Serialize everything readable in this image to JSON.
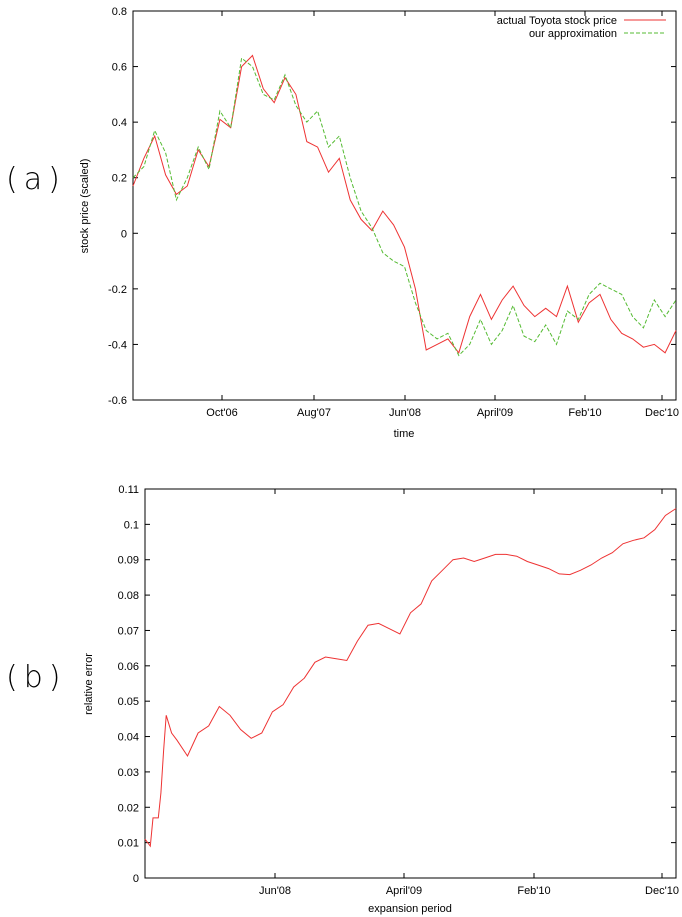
{
  "panel_labels": [
    "(a)",
    "(b)"
  ],
  "chart_data": [
    {
      "type": "line",
      "xlabel": "time",
      "ylabel": "stock price (scaled)",
      "x_ticks": [
        "Oct'06",
        "Aug'07",
        "Jun'08",
        "April'09",
        "Feb'10",
        "Dec'10"
      ],
      "ylim": [
        -0.6,
        0.8
      ],
      "y_ticks": [
        "-0.6",
        "-0.4",
        "-0.2",
        "0",
        "0.2",
        "0.4",
        "0.6",
        "0.8"
      ],
      "legend_position": "top-right",
      "colors": {
        "actual": "#ee3333",
        "approx": "#55bb33"
      },
      "series": [
        {
          "name": "actual Toyota stock price",
          "style": "solid",
          "x": [
            0,
            0.02,
            0.04,
            0.06,
            0.08,
            0.1,
            0.12,
            0.14,
            0.16,
            0.18,
            0.2,
            0.22,
            0.24,
            0.26,
            0.28,
            0.3,
            0.32,
            0.34,
            0.36,
            0.38,
            0.4,
            0.42,
            0.44,
            0.46,
            0.48,
            0.5,
            0.52,
            0.54,
            0.56,
            0.58,
            0.6,
            0.62,
            0.64,
            0.66,
            0.68,
            0.7,
            0.72,
            0.74,
            0.76,
            0.78,
            0.8,
            0.82,
            0.84,
            0.86,
            0.88,
            0.9,
            0.92,
            0.94,
            0.96,
            0.98,
            1.0
          ],
          "values": [
            0.17,
            0.27,
            0.35,
            0.21,
            0.14,
            0.17,
            0.3,
            0.24,
            0.41,
            0.38,
            0.6,
            0.64,
            0.52,
            0.47,
            0.56,
            0.5,
            0.33,
            0.31,
            0.22,
            0.27,
            0.12,
            0.05,
            0.01,
            0.08,
            0.03,
            -0.05,
            -0.2,
            -0.42,
            -0.4,
            -0.38,
            -0.43,
            -0.3,
            -0.22,
            -0.31,
            -0.24,
            -0.19,
            -0.26,
            -0.3,
            -0.27,
            -0.3,
            -0.19,
            -0.32,
            -0.25,
            -0.22,
            -0.31,
            -0.36,
            -0.38,
            -0.41,
            -0.4,
            -0.43,
            -0.35
          ]
        },
        {
          "name": "our approximation",
          "style": "dashed",
          "x": [
            0,
            0.02,
            0.04,
            0.06,
            0.08,
            0.1,
            0.12,
            0.14,
            0.16,
            0.18,
            0.2,
            0.22,
            0.24,
            0.26,
            0.28,
            0.3,
            0.32,
            0.34,
            0.36,
            0.38,
            0.4,
            0.42,
            0.44,
            0.46,
            0.48,
            0.5,
            0.52,
            0.54,
            0.56,
            0.58,
            0.6,
            0.62,
            0.64,
            0.66,
            0.68,
            0.7,
            0.72,
            0.74,
            0.76,
            0.78,
            0.8,
            0.82,
            0.84,
            0.86,
            0.88,
            0.9,
            0.92,
            0.94,
            0.96,
            0.98,
            1.0
          ],
          "values": [
            0.2,
            0.24,
            0.37,
            0.29,
            0.12,
            0.2,
            0.31,
            0.23,
            0.44,
            0.38,
            0.63,
            0.6,
            0.5,
            0.48,
            0.57,
            0.46,
            0.4,
            0.44,
            0.31,
            0.35,
            0.2,
            0.08,
            0.02,
            -0.07,
            -0.1,
            -0.12,
            -0.25,
            -0.35,
            -0.38,
            -0.36,
            -0.44,
            -0.4,
            -0.31,
            -0.4,
            -0.35,
            -0.26,
            -0.37,
            -0.39,
            -0.33,
            -0.4,
            -0.28,
            -0.31,
            -0.22,
            -0.18,
            -0.2,
            -0.22,
            -0.3,
            -0.34,
            -0.24,
            -0.3,
            -0.24
          ]
        }
      ]
    },
    {
      "type": "line",
      "xlabel": "expansion period",
      "ylabel": "relative error",
      "x_ticks": [
        "Jun'08",
        "April'09",
        "Feb'10",
        "Dec'10"
      ],
      "ylim": [
        0,
        0.11
      ],
      "y_ticks": [
        "0",
        "0.01",
        "0.02",
        "0.03",
        "0.04",
        "0.05",
        "0.06",
        "0.07",
        "0.08",
        "0.09",
        "0.1",
        "0.11"
      ],
      "colors": {
        "error": "#ee3333"
      },
      "series": [
        {
          "x": [
            0,
            0.01,
            0.015,
            0.025,
            0.03,
            0.035,
            0.04,
            0.05,
            0.06,
            0.08,
            0.1,
            0.12,
            0.14,
            0.16,
            0.18,
            0.2,
            0.22,
            0.24,
            0.26,
            0.28,
            0.3,
            0.32,
            0.34,
            0.36,
            0.38,
            0.4,
            0.42,
            0.44,
            0.46,
            0.48,
            0.5,
            0.52,
            0.54,
            0.56,
            0.58,
            0.6,
            0.62,
            0.64,
            0.66,
            0.68,
            0.7,
            0.72,
            0.74,
            0.76,
            0.78,
            0.8,
            0.82,
            0.84,
            0.86,
            0.88,
            0.9,
            0.92,
            0.94,
            0.96,
            0.98,
            1.0
          ],
          "values": [
            0.011,
            0.009,
            0.017,
            0.017,
            0.024,
            0.036,
            0.046,
            0.041,
            0.039,
            0.0345,
            0.041,
            0.043,
            0.0485,
            0.046,
            0.042,
            0.0395,
            0.041,
            0.047,
            0.049,
            0.054,
            0.0565,
            0.061,
            0.0625,
            0.062,
            0.0615,
            0.067,
            0.0715,
            0.072,
            0.0705,
            0.069,
            0.075,
            0.0775,
            0.084,
            0.087,
            0.09,
            0.0905,
            0.0895,
            0.0905,
            0.0915,
            0.0915,
            0.091,
            0.0895,
            0.0885,
            0.0875,
            0.086,
            0.0858,
            0.087,
            0.0885,
            0.0905,
            0.092,
            0.0945,
            0.0955,
            0.0962,
            0.0985,
            0.1025,
            0.1045
          ]
        }
      ]
    }
  ]
}
